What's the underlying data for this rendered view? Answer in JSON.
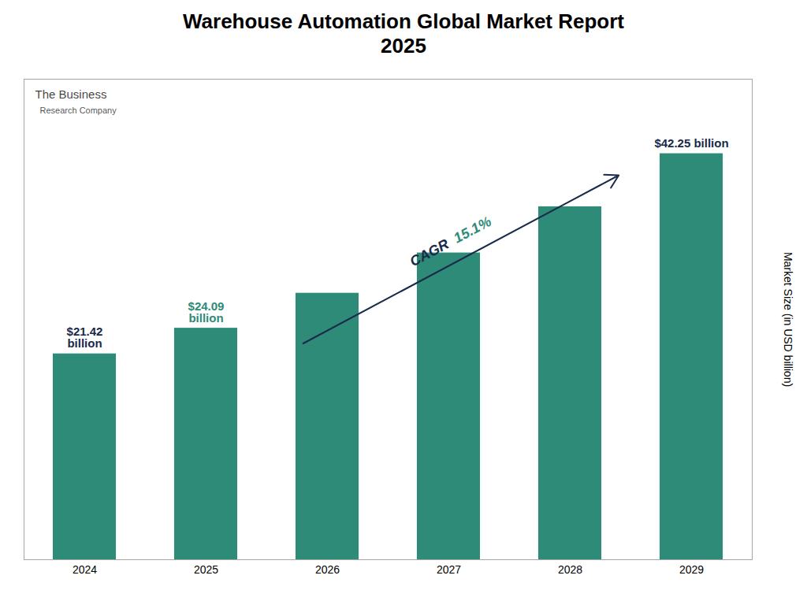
{
  "chart_data": {
    "type": "bar",
    "title": "Warehouse Automation Global Market Report\n2025",
    "y_label": "Market Size (in USD billion)",
    "categories": [
      "2024",
      "2025",
      "2026",
      "2027",
      "2028",
      "2029"
    ],
    "values": [
      21.42,
      24.09,
      27.73,
      31.92,
      36.73,
      42.25
    ],
    "color": "#2e8b78",
    "ylim": [
      0,
      50
    ],
    "grid": false,
    "tick_labels": "x",
    "annotations": [
      {
        "text": "$21.42\nbillion",
        "x": "2024",
        "y": 21.42,
        "color": "#1a2a4a"
      },
      {
        "text": "$24.09\nbillion",
        "x": "2025",
        "y": 24.09,
        "color": "#2e8b78"
      },
      {
        "text": "$42.25 billion",
        "x": "2029",
        "y": 42.25,
        "color": "#1a2a4a"
      }
    ],
    "arrow_annotation": [
      {
        "text": "CAGR",
        "color": "#1a2a4a"
      },
      {
        "text": "15.1%",
        "color": "#2e8b78"
      }
    ],
    "logo": [
      "The Business",
      "Research Company"
    ]
  }
}
